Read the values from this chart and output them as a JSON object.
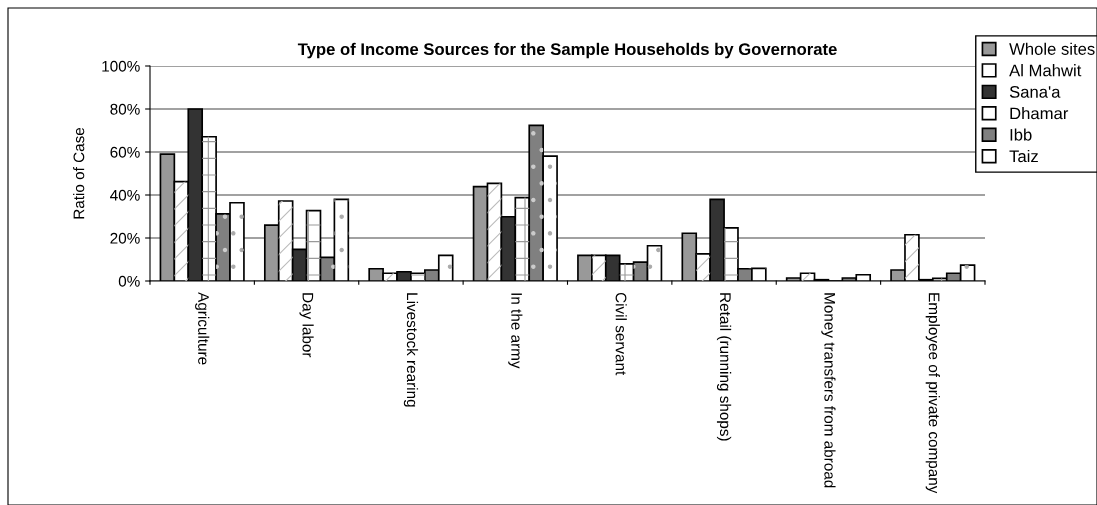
{
  "chart_data": {
    "type": "bar",
    "title": "Type of Income Sources for the Sample Households by Governorate",
    "ylabel": "Ratio of Case",
    "categories": [
      "Agriculture",
      "Day labor",
      "Livestock rearing",
      "In the army",
      "Civil servant",
      "Retail (running shops)",
      "Money transfers from abroad",
      "Employee of private company"
    ],
    "series": [
      {
        "name": "Whole sites",
        "color": "#999999",
        "values": [
          59,
          26,
          5.7,
          43.9,
          11.9,
          22.2,
          1.4,
          5.1
        ]
      },
      {
        "name": "Al Mahwit",
        "color": "#ffffff",
        "values": [
          46.2,
          37.2,
          3.6,
          45.4,
          11.9,
          12.6,
          3.6,
          21.5
        ]
      },
      {
        "name": "Sana'a",
        "color": "#333333",
        "values": [
          80,
          14.7,
          4.3,
          29.9,
          11.9,
          38,
          0.6,
          0.6
        ]
      },
      {
        "name": "Dhamar",
        "color": "#ffffff",
        "values": [
          67.1,
          32.7,
          3.6,
          38.8,
          8,
          24.7,
          null,
          1.2
        ]
      },
      {
        "name": "Ibb",
        "color": "#808080",
        "values": [
          31.2,
          11,
          5.1,
          72.4,
          8.8,
          5.7,
          1.4,
          3.6
        ]
      },
      {
        "name": "Taiz",
        "color": "#ffffff",
        "values": [
          36.4,
          38,
          11.9,
          58.1,
          16.4,
          5.9,
          2.9,
          7.4
        ]
      }
    ],
    "ylim": [
      0,
      100
    ],
    "yticks": [
      {
        "value": 0,
        "label": "0%"
      },
      {
        "value": 20,
        "label": "20%"
      },
      {
        "value": 40,
        "label": "40%"
      },
      {
        "value": 60,
        "label": "60%"
      },
      {
        "value": 80,
        "label": "80%"
      },
      {
        "value": 100,
        "label": "100%"
      }
    ],
    "grid": "y",
    "legend": "top right"
  }
}
